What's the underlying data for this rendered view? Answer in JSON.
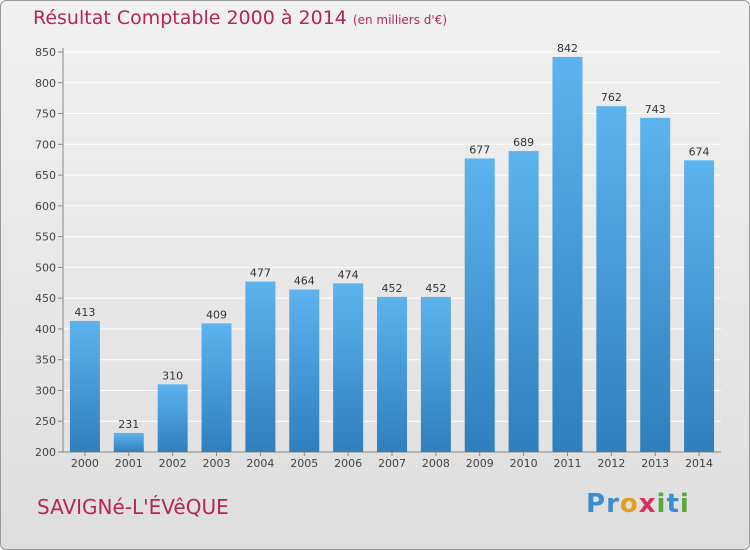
{
  "title": "Résultat Comptable 2000 à 2014",
  "subtitle": "(en milliers d'€)",
  "commune": "SAVIGNé-L'ÉVêQUE",
  "brand": {
    "letters": [
      "P",
      "r",
      "o",
      "x",
      "i",
      "t",
      "i"
    ],
    "colors": [
      "#3c8ed0",
      "#3c8ed0",
      "#e0a020",
      "#d83060",
      "#5aa83c",
      "#3c8ed0",
      "#5aa83c"
    ]
  },
  "colors": {
    "bar_top": "#5db3ee",
    "bar_bottom": "#2f7fbd",
    "text": "#b4255a",
    "grid": "#ffffff"
  },
  "chart_data": {
    "type": "bar",
    "categories": [
      "2000",
      "2001",
      "2002",
      "2003",
      "2004",
      "2005",
      "2006",
      "2007",
      "2008",
      "2009",
      "2010",
      "2011",
      "2012",
      "2013",
      "2014"
    ],
    "values": [
      413,
      231,
      310,
      409,
      477,
      464,
      474,
      452,
      452,
      677,
      689,
      842,
      762,
      743,
      674
    ],
    "data_labels": [
      "413",
      "231",
      "310",
      "409",
      "477",
      "464",
      "474",
      "452",
      "452",
      "677",
      "689",
      "842",
      "762",
      "743",
      "674"
    ],
    "yticks": [
      200,
      250,
      300,
      350,
      400,
      450,
      500,
      550,
      600,
      650,
      700,
      750,
      800,
      850
    ],
    "ylim": [
      200,
      850
    ],
    "grid": true
  }
}
